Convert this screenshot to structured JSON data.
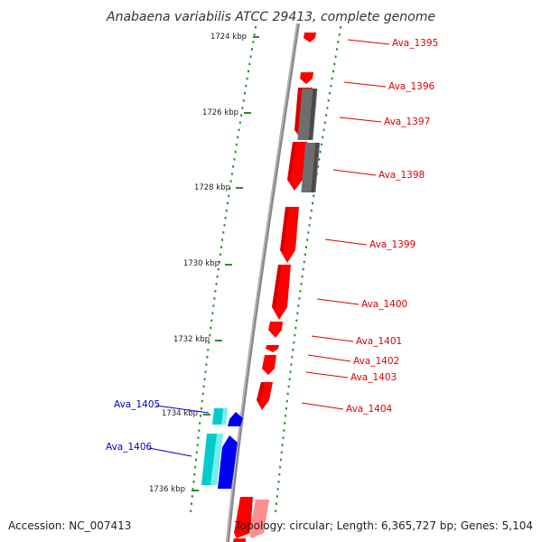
{
  "title": "Anabaena variabilis ATCC 29413, complete genome",
  "footer": {
    "accession": "Accession: NC_007413",
    "summary": "Topology: circular; Length: 6,365,727 bp; Genes: 5,104"
  },
  "colors": {
    "forward_gene": "#ff0000",
    "forward_gene_pale": "#ff9999",
    "reverse_gene_blue": "#0000ee",
    "reverse_gene_cyan": "#00cccc",
    "gray_feature": "#777777",
    "backbone": "#888888",
    "tick": "#2e8b2e",
    "label_red": "#dd0000",
    "label_blue": "#0000cc"
  },
  "scale_labels": [
    "1724 kbp",
    "1726 kbp",
    "1728 kbp",
    "1730 kbp",
    "1732 kbp",
    "1734 kbp",
    "1736 kbp"
  ],
  "gene_labels": [
    {
      "text": "Ava_1395",
      "strand": "forward"
    },
    {
      "text": "Ava_1396",
      "strand": "forward"
    },
    {
      "text": "Ava_1397",
      "strand": "forward"
    },
    {
      "text": "Ava_1398",
      "strand": "forward"
    },
    {
      "text": "Ava_1399",
      "strand": "forward"
    },
    {
      "text": "Ava_1400",
      "strand": "forward"
    },
    {
      "text": "Ava_1401",
      "strand": "forward"
    },
    {
      "text": "Ava_1402",
      "strand": "forward"
    },
    {
      "text": "Ava_1403",
      "strand": "forward"
    },
    {
      "text": "Ava_1404",
      "strand": "forward"
    },
    {
      "text": "Ava_1405",
      "strand": "reverse"
    },
    {
      "text": "Ava_1406",
      "strand": "reverse"
    }
  ]
}
